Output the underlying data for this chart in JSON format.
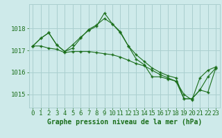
{
  "title": "Graphe pression niveau de la mer (hPa)",
  "background_color": "#ceeaea",
  "grid_color": "#aacfcf",
  "line_color": "#1a6e1a",
  "hours": [
    0,
    1,
    2,
    3,
    4,
    5,
    6,
    7,
    8,
    9,
    10,
    11,
    12,
    13,
    14,
    15,
    16,
    17,
    18,
    19,
    20,
    21,
    22,
    23
  ],
  "series1": [
    1017.2,
    1017.55,
    1017.8,
    1017.25,
    1016.95,
    1017.1,
    1017.55,
    1017.95,
    1018.15,
    1018.45,
    1018.2,
    1017.8,
    1017.2,
    1016.6,
    1016.35,
    1015.8,
    1015.8,
    1015.7,
    1015.6,
    1014.8,
    1014.8,
    1015.2,
    1015.1,
    1016.2
  ],
  "series2": [
    1017.2,
    1017.55,
    1017.8,
    1017.25,
    1016.95,
    1017.25,
    1017.6,
    1017.9,
    1018.1,
    1018.7,
    1018.2,
    1017.85,
    1017.2,
    1016.8,
    1016.5,
    1016.2,
    1016.0,
    1015.85,
    1015.75,
    1014.8,
    1014.8,
    1015.2,
    1015.8,
    1016.2
  ],
  "series3": [
    1017.2,
    1017.2,
    1017.1,
    1017.05,
    1016.9,
    1016.95,
    1016.95,
    1016.95,
    1016.9,
    1016.85,
    1016.8,
    1016.7,
    1016.55,
    1016.4,
    1016.3,
    1016.1,
    1015.9,
    1015.75,
    1015.6,
    1015.0,
    1014.75,
    1015.75,
    1016.1,
    1016.25
  ],
  "ylim_min": 1014.4,
  "ylim_max": 1019.1,
  "yticks": [
    1015,
    1016,
    1017,
    1018
  ],
  "xlabel_fontsize": 6.5,
  "ylabel_fontsize": 6.5,
  "title_fontsize": 7.0
}
